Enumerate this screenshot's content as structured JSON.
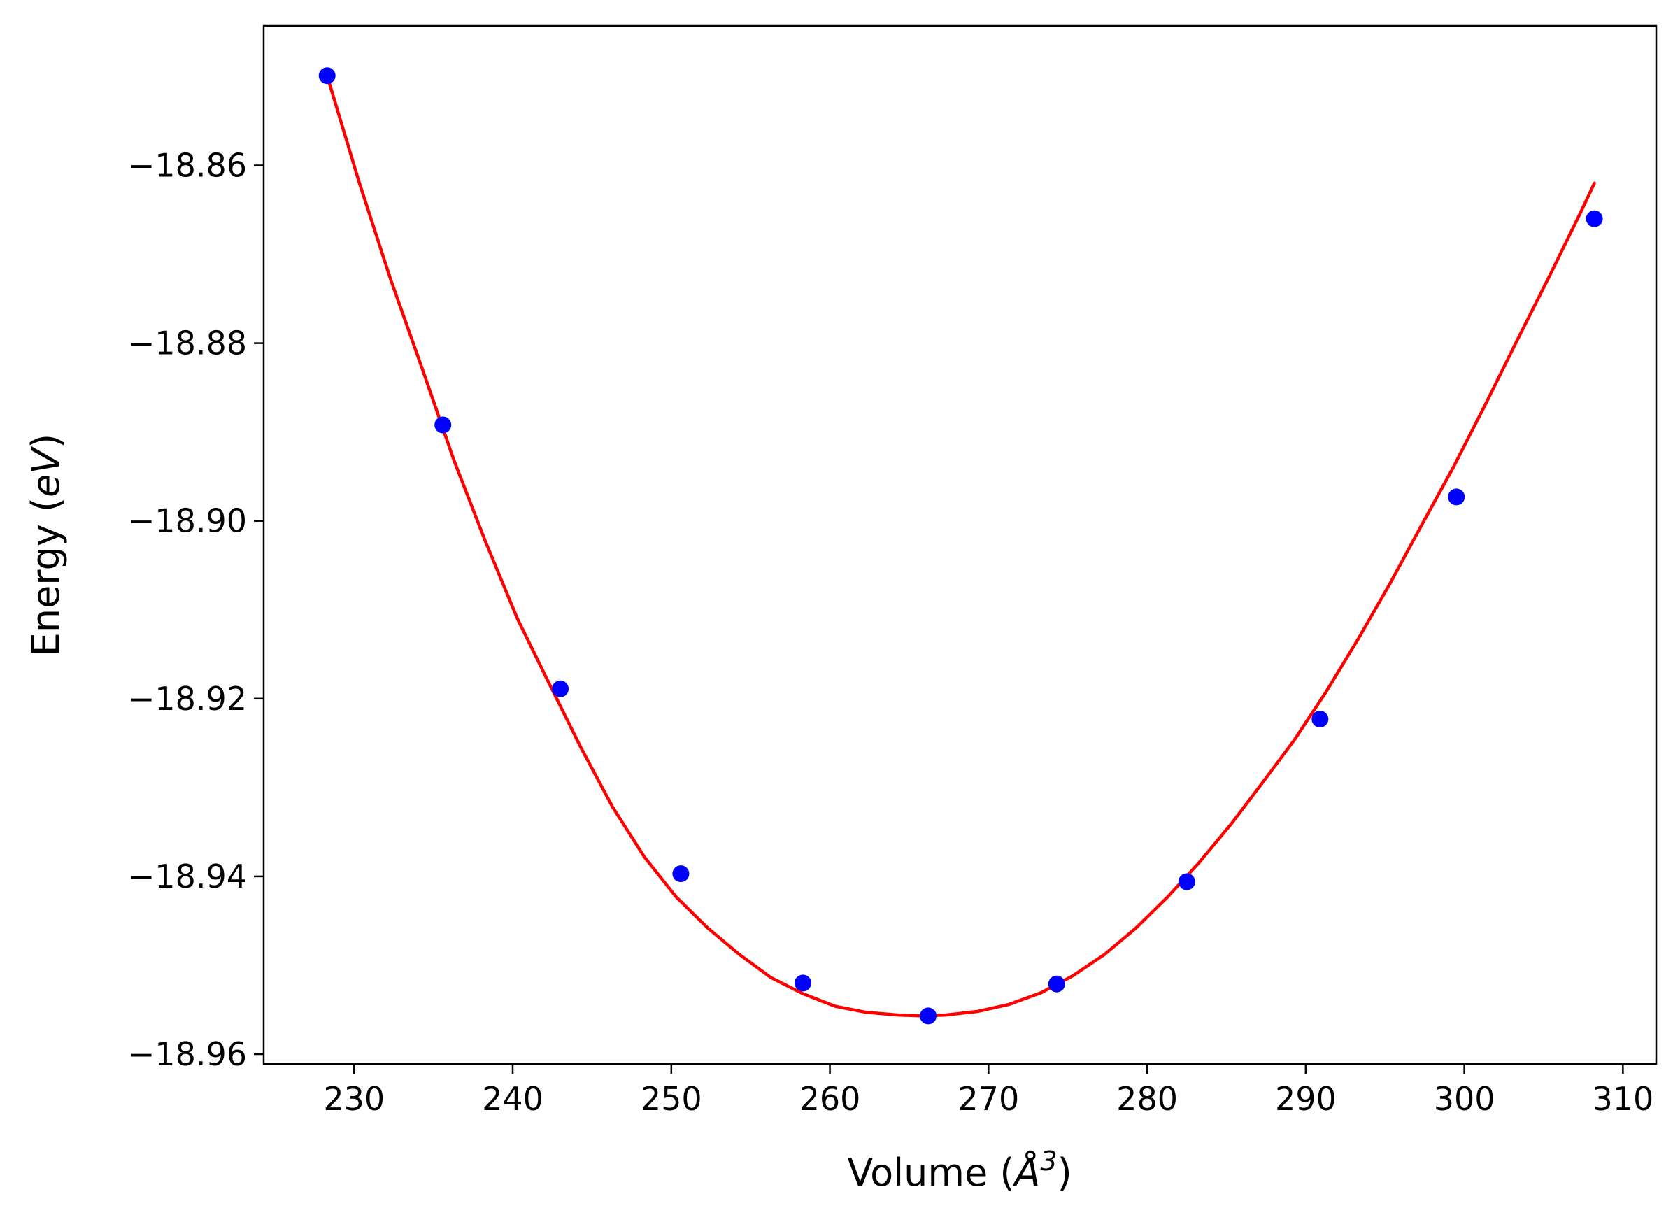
{
  "chart_data": {
    "type": "scatter",
    "title": "",
    "xlabel": {
      "prefix": "Volume (",
      "symbol": "Å",
      "superscript": "3",
      "suffix": ")"
    },
    "ylabel": {
      "prefix": "Energy (",
      "symbol": "eV",
      "suffix": ")"
    },
    "xlim": [
      224.3,
      312.1
    ],
    "ylim": [
      -18.9611,
      -18.8443
    ],
    "xticks": [
      230,
      240,
      250,
      260,
      270,
      280,
      290,
      300,
      310
    ],
    "xtick_labels": [
      "230",
      "240",
      "250",
      "260",
      "270",
      "280",
      "290",
      "300",
      "310"
    ],
    "yticks": [
      -18.86,
      -18.88,
      -18.9,
      -18.92,
      -18.94,
      -18.96
    ],
    "ytick_labels": [
      "−18.86",
      "−18.88",
      "−18.90",
      "−18.92",
      "−18.94",
      "−18.96"
    ],
    "grid": false,
    "legend": "none",
    "colors": {
      "points": "#0000ff",
      "fit": "#ff0000",
      "axes": "#000000"
    },
    "series": [
      {
        "kind": "scatter",
        "x": [
          228.3,
          235.6,
          243.0,
          250.6,
          258.3,
          266.2,
          274.3,
          282.5,
          290.9,
          299.5,
          308.2
        ],
        "y": [
          -18.8499,
          -18.8892,
          -18.9189,
          -18.9397,
          -18.952,
          -18.9557,
          -18.9521,
          -18.9406,
          -18.9223,
          -18.8973,
          -18.866
        ]
      },
      {
        "kind": "line",
        "x": [
          228.3,
          230.3,
          232.3,
          234.3,
          236.3,
          238.3,
          240.3,
          242.3,
          244.3,
          246.3,
          248.3,
          250.3,
          252.3,
          254.3,
          256.3,
          258.3,
          260.3,
          262.3,
          264.3,
          265.8,
          267.3,
          269.3,
          271.3,
          273.3,
          275.3,
          277.3,
          279.3,
          281.3,
          283.3,
          285.3,
          287.3,
          289.3,
          291.3,
          293.3,
          295.3,
          297.3,
          299.3,
          301.3,
          303.3,
          305.3,
          307.3,
          308.2
        ],
        "y": [
          -18.8499,
          -18.8618,
          -18.8728,
          -18.8829,
          -18.8932,
          -18.9024,
          -18.911,
          -18.9183,
          -18.9255,
          -18.9322,
          -18.9378,
          -18.9423,
          -18.9458,
          -18.9488,
          -18.9514,
          -18.9532,
          -18.9546,
          -18.9553,
          -18.9556,
          -18.9557,
          -18.9556,
          -18.9552,
          -18.9544,
          -18.9531,
          -18.9512,
          -18.9488,
          -18.9458,
          -18.9423,
          -18.9384,
          -18.9341,
          -18.9294,
          -18.9246,
          -18.9192,
          -18.9133,
          -18.9071,
          -18.9005,
          -18.894,
          -18.887,
          -18.8798,
          -18.8727,
          -18.8654,
          -18.862
        ]
      }
    ]
  }
}
